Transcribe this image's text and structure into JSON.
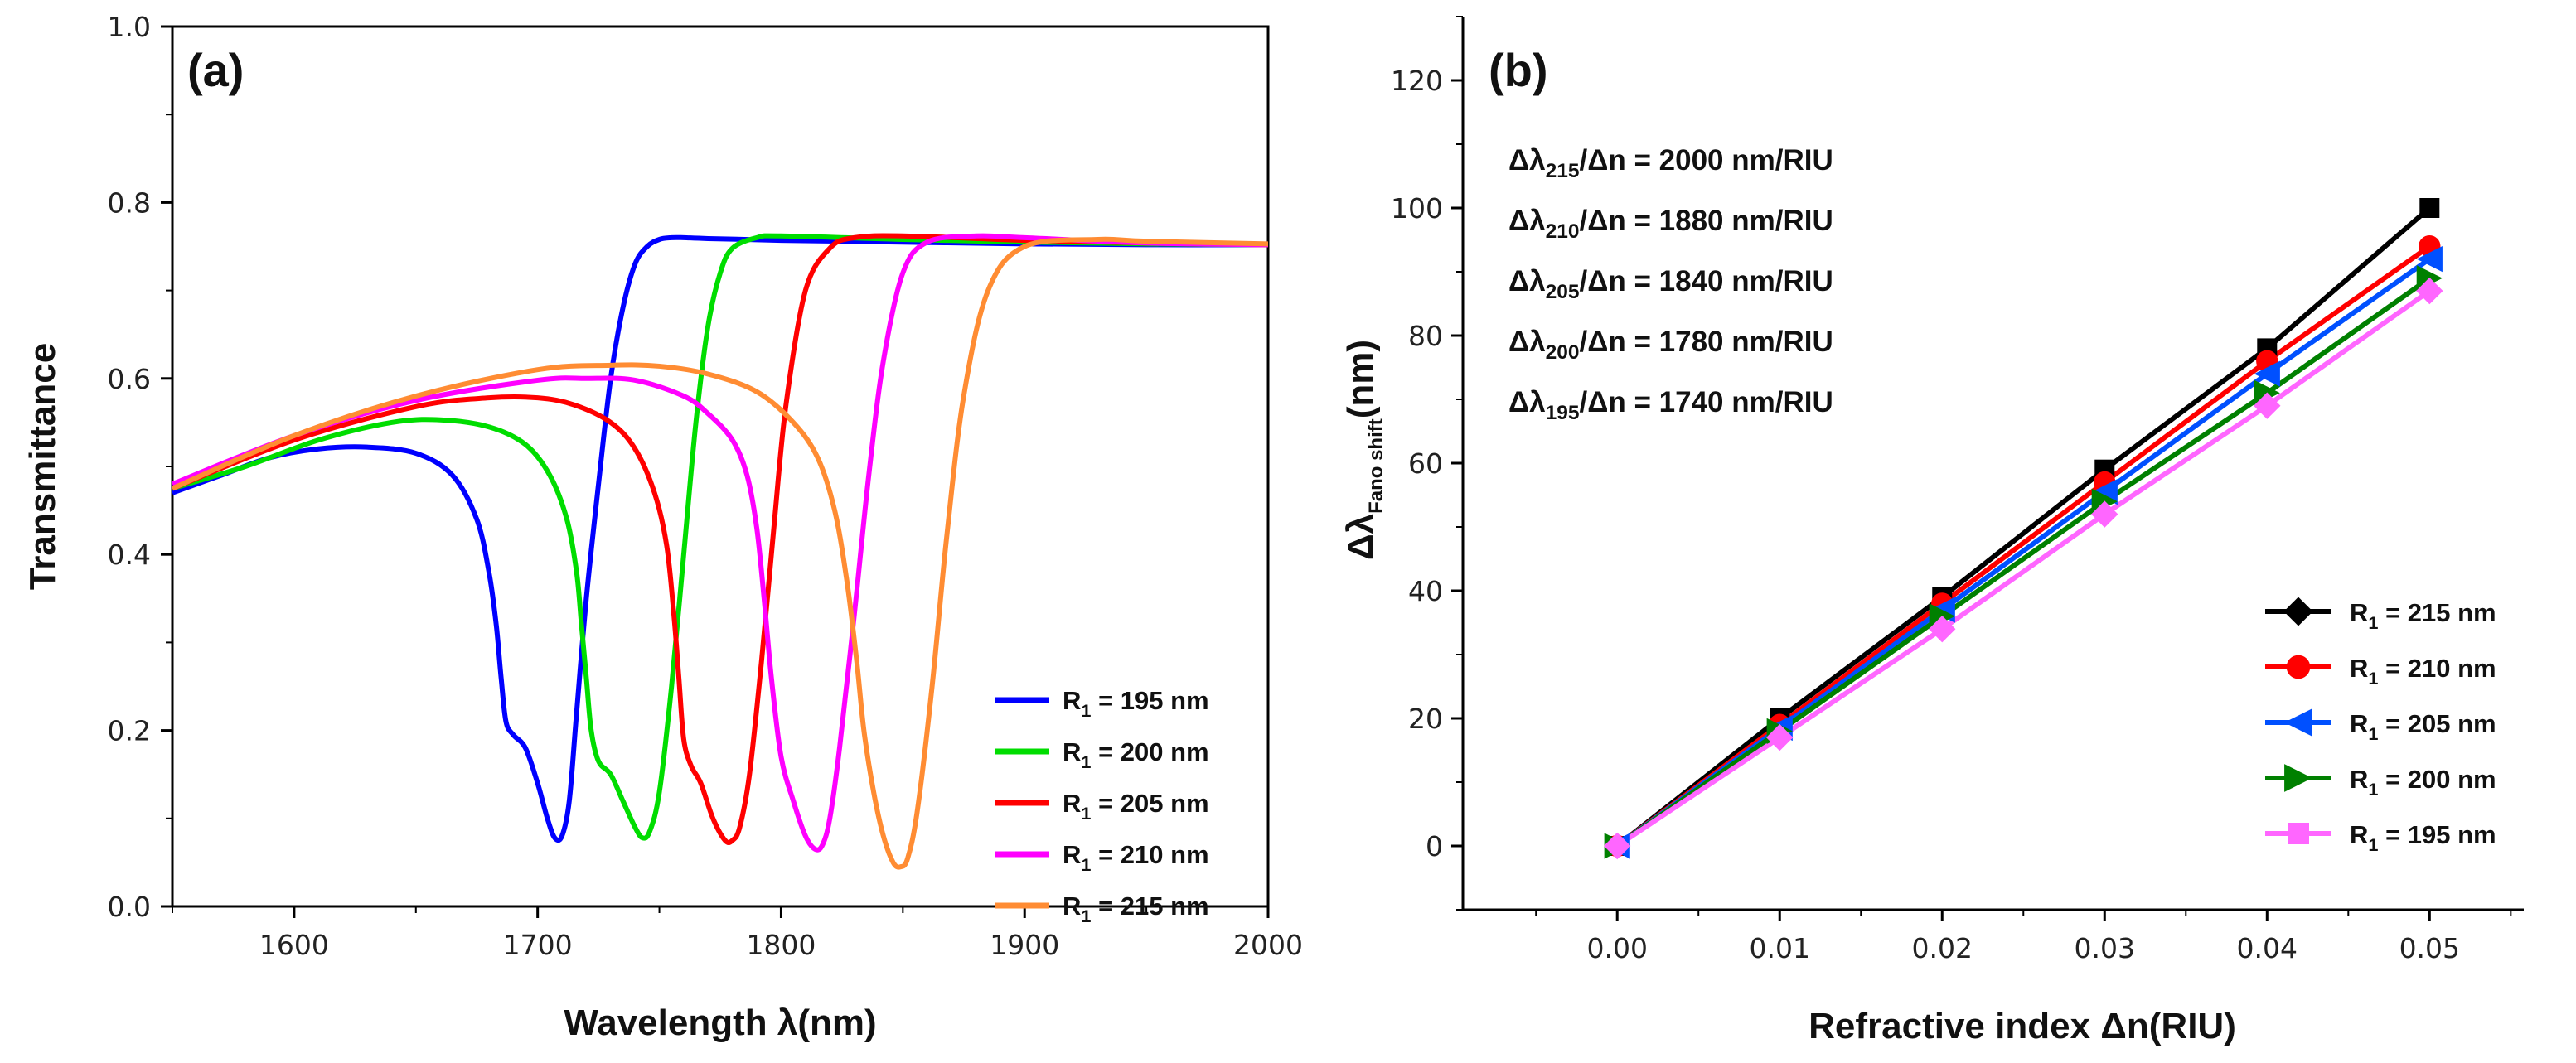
{
  "chart_data": [
    {
      "panel": "(a)",
      "type": "line",
      "xlabel": "Wavelength λ(nm)",
      "ylabel": "Transmittance",
      "xlim": [
        1550,
        2000
      ],
      "ylim": [
        0.0,
        1.0
      ],
      "xticks": [
        "1600",
        "1700",
        "1800",
        "1900",
        "2000"
      ],
      "yticks": [
        "0.0",
        "0.2",
        "0.4",
        "0.6",
        "0.8",
        "1.0"
      ],
      "legend_position": "bottom-right",
      "series": [
        {
          "name": "R₁ = 195 nm",
          "label_main": "R",
          "label_sub": "1",
          "label_rest": " = 195 nm",
          "color": "#0000ff",
          "x": [
            1550,
            1570,
            1590,
            1610,
            1630,
            1650,
            1665,
            1675,
            1680,
            1683,
            1685,
            1687,
            1690,
            1695,
            1700,
            1704,
            1707,
            1710,
            1713,
            1716,
            1720,
            1725,
            1730,
            1735,
            1740,
            1745,
            1750,
            1755,
            1760,
            1770,
            1800,
            1850,
            1900,
            1950,
            2000
          ],
          "y": [
            0.47,
            0.49,
            0.51,
            0.52,
            0.522,
            0.515,
            0.49,
            0.44,
            0.38,
            0.32,
            0.26,
            0.21,
            0.195,
            0.18,
            0.14,
            0.1,
            0.078,
            0.08,
            0.12,
            0.22,
            0.35,
            0.48,
            0.6,
            0.68,
            0.73,
            0.75,
            0.758,
            0.76,
            0.76,
            0.759,
            0.757,
            0.755,
            0.753,
            0.752,
            0.752
          ]
        },
        {
          "name": "R₁ = 200 nm",
          "label_main": "R",
          "label_sub": "1",
          "label_rest": " = 200 nm",
          "color": "#00dd00",
          "x": [
            1550,
            1580,
            1610,
            1640,
            1660,
            1680,
            1695,
            1705,
            1712,
            1716,
            1718,
            1720,
            1722,
            1725,
            1730,
            1735,
            1740,
            1743,
            1746,
            1750,
            1755,
            1760,
            1765,
            1770,
            1775,
            1780,
            1790,
            1800,
            1850,
            1900,
            1950,
            2000
          ],
          "y": [
            0.475,
            0.5,
            0.53,
            0.55,
            0.553,
            0.545,
            0.525,
            0.49,
            0.44,
            0.38,
            0.32,
            0.26,
            0.2,
            0.165,
            0.15,
            0.12,
            0.09,
            0.078,
            0.085,
            0.13,
            0.25,
            0.4,
            0.55,
            0.66,
            0.72,
            0.748,
            0.76,
            0.762,
            0.758,
            0.755,
            0.753,
            0.752
          ]
        },
        {
          "name": "R₁ = 205 nm",
          "label_main": "R",
          "label_sub": "1",
          "label_rest": " = 205 nm",
          "color": "#ff0000",
          "x": [
            1550,
            1600,
            1650,
            1680,
            1700,
            1715,
            1730,
            1740,
            1748,
            1753,
            1756,
            1758,
            1760,
            1763,
            1767,
            1772,
            1777,
            1780,
            1783,
            1787,
            1792,
            1797,
            1802,
            1810,
            1820,
            1830,
            1850,
            1900,
            1950,
            2000
          ],
          "y": [
            0.475,
            0.53,
            0.568,
            0.578,
            0.578,
            0.57,
            0.55,
            0.52,
            0.47,
            0.41,
            0.33,
            0.26,
            0.19,
            0.16,
            0.14,
            0.1,
            0.075,
            0.075,
            0.09,
            0.15,
            0.28,
            0.43,
            0.57,
            0.7,
            0.748,
            0.76,
            0.762,
            0.757,
            0.754,
            0.752
          ]
        },
        {
          "name": "R₁ = 210 nm",
          "label_main": "R",
          "label_sub": "1",
          "label_rest": " = 210 nm",
          "color": "#ff00ff",
          "x": [
            1550,
            1600,
            1650,
            1700,
            1720,
            1740,
            1760,
            1770,
            1780,
            1786,
            1790,
            1793,
            1796,
            1800,
            1805,
            1810,
            1814,
            1817,
            1820,
            1824,
            1830,
            1836,
            1842,
            1850,
            1860,
            1880,
            1900,
            1950,
            2000
          ],
          "y": [
            0.48,
            0.535,
            0.575,
            0.598,
            0.6,
            0.598,
            0.58,
            0.56,
            0.53,
            0.49,
            0.43,
            0.35,
            0.26,
            0.17,
            0.12,
            0.08,
            0.065,
            0.07,
            0.1,
            0.18,
            0.33,
            0.49,
            0.62,
            0.72,
            0.755,
            0.762,
            0.76,
            0.754,
            0.752
          ]
        },
        {
          "name": "R₁ = 215 nm",
          "label_main": "R",
          "label_sub": "1",
          "label_rest": " = 215 nm",
          "color": "#ff8c33",
          "x": [
            1550,
            1600,
            1650,
            1700,
            1730,
            1750,
            1770,
            1790,
            1805,
            1815,
            1822,
            1827,
            1831,
            1834,
            1838,
            1842,
            1846,
            1849,
            1852,
            1856,
            1862,
            1868,
            1875,
            1885,
            1900,
            1930,
            1950,
            2000
          ],
          "y": [
            0.475,
            0.535,
            0.58,
            0.61,
            0.615,
            0.614,
            0.605,
            0.585,
            0.55,
            0.51,
            0.45,
            0.37,
            0.28,
            0.2,
            0.13,
            0.08,
            0.05,
            0.045,
            0.055,
            0.11,
            0.25,
            0.42,
            0.58,
            0.7,
            0.75,
            0.758,
            0.756,
            0.753
          ]
        }
      ]
    },
    {
      "panel": "(b)",
      "type": "line",
      "xlabel": "Refractive index Δn(RIU)",
      "ylabel_main": "Δλ",
      "ylabel_sub": "Fano shift",
      "ylabel_rest": "(nm)",
      "xlim": [
        -0.0095,
        0.0558
      ],
      "ylim": [
        -10,
        130
      ],
      "xticks": [
        "0.00",
        "0.01",
        "0.02",
        "0.03",
        "0.04",
        "0.05"
      ],
      "yticks": [
        "0",
        "20",
        "40",
        "60",
        "80",
        "100",
        "120"
      ],
      "legend_position": "bottom-right",
      "annotations": [
        {
          "main": "Δλ",
          "sub": "215",
          "rest": "/Δn = 2000 nm/RIU"
        },
        {
          "main": "Δλ",
          "sub": "210",
          "rest": "/Δn = 1880 nm/RIU"
        },
        {
          "main": "Δλ",
          "sub": "205",
          "rest": "/Δn = 1840 nm/RIU"
        },
        {
          "main": "Δλ",
          "sub": "200",
          "rest": "/Δn = 1780 nm/RIU"
        },
        {
          "main": "Δλ",
          "sub": "195",
          "rest": "/Δn = 1740 nm/RIU"
        }
      ],
      "x": [
        0.0,
        0.01,
        0.02,
        0.03,
        0.04,
        0.05
      ],
      "series": [
        {
          "name": "R₁ = 215 nm",
          "label_main": "R",
          "label_sub": "1",
          "label_rest": " = 215 nm",
          "color": "#000000",
          "legend_marker": "diamond",
          "marker": "square",
          "values": [
            0,
            20,
            39,
            59,
            78,
            100
          ]
        },
        {
          "name": "R₁ = 210 nm",
          "label_main": "R",
          "label_sub": "1",
          "label_rest": " = 210 nm",
          "color": "#ff0000",
          "legend_marker": "circle",
          "marker": "circle",
          "values": [
            0,
            19,
            38,
            57,
            76,
            94
          ]
        },
        {
          "name": "R₁ = 205 nm",
          "label_main": "R",
          "label_sub": "1",
          "label_rest": " = 205 nm",
          "color": "#0050ff",
          "legend_marker": "triangle-left",
          "marker": "triangle-left",
          "values": [
            0,
            18.5,
            37,
            55.5,
            74,
            92
          ]
        },
        {
          "name": "R₁ = 200 nm",
          "label_main": "R",
          "label_sub": "1",
          "label_rest": " = 200 nm",
          "color": "#008000",
          "legend_marker": "triangle-right",
          "marker": "triangle-right",
          "values": [
            0,
            18,
            36,
            54,
            71,
            89
          ]
        },
        {
          "name": "R₁ = 195 nm",
          "label_main": "R",
          "label_sub": "1",
          "label_rest": " = 195 nm",
          "color": "#ff66ff",
          "legend_marker": "square",
          "marker": "diamond",
          "values": [
            0,
            17,
            34,
            52,
            69,
            87
          ]
        }
      ]
    }
  ]
}
